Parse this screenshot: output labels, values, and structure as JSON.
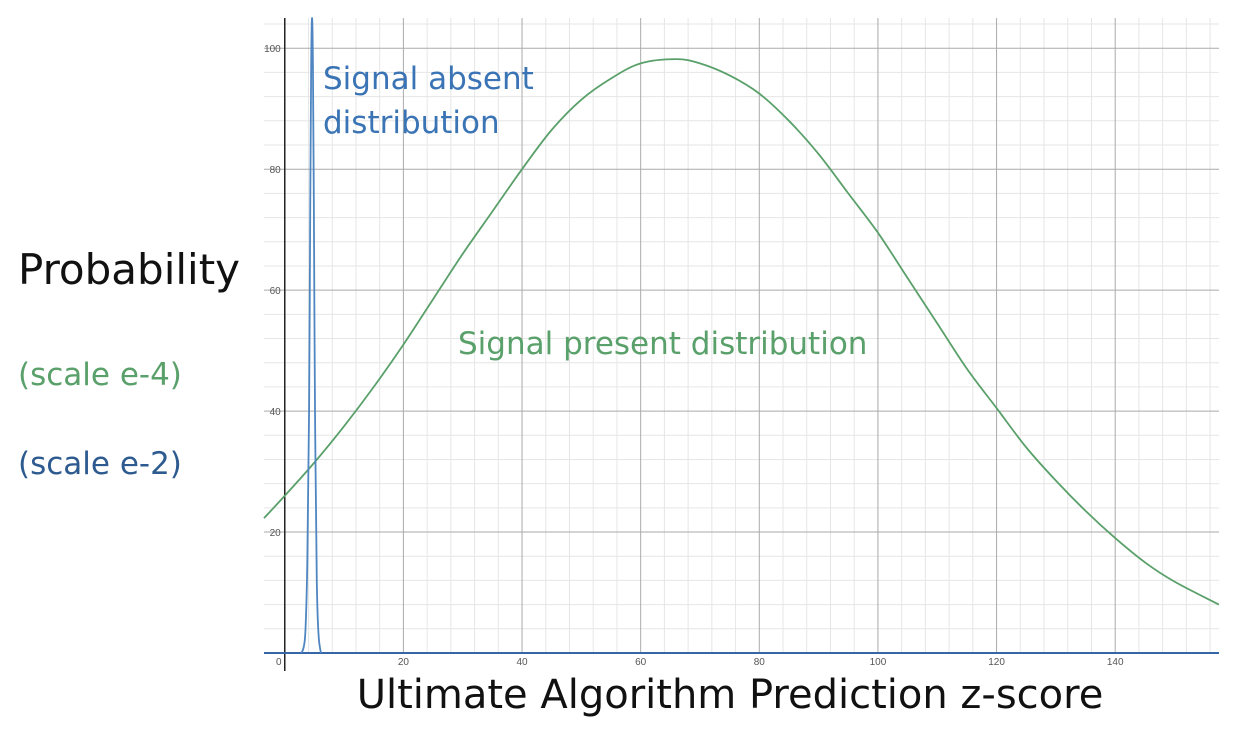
{
  "labels": {
    "ylabel": "Probability",
    "scale_green": "(scale e-4)",
    "scale_blue": "(scale e-2)",
    "xlabel": "Ultimate Algorithm Prediction z-score",
    "absent_line1": "Signal absent",
    "absent_line2": "distribution",
    "present": "Signal present distribution"
  },
  "colors": {
    "present": "#5aa06a",
    "absent": "#4f86c2",
    "scale_blue": "#2e5b8f",
    "absent_label": "#3a74b5",
    "axis_x": "#3567a8",
    "axis_y": "#222222",
    "grid_major": "#aaaaaa",
    "grid_minor": "#e6e6e6"
  },
  "chart_data": {
    "type": "line",
    "xlim": [
      -3.5,
      157.5
    ],
    "ylim": [
      0,
      105
    ],
    "x_ticks": [
      0,
      20,
      40,
      60,
      80,
      100,
      120,
      140
    ],
    "x_tick_labels": [
      "0",
      "20",
      "40",
      "60",
      "80",
      "100",
      "120",
      "140"
    ],
    "y_ticks": [
      20,
      40,
      60,
      80,
      100
    ],
    "y_tick_labels": [
      "20",
      "40",
      "60",
      "80",
      "100"
    ],
    "grid": true,
    "series": [
      {
        "name": "Signal present distribution",
        "x": [
          -3.5,
          0,
          5,
          10,
          15,
          20,
          25,
          30,
          35,
          40,
          45,
          50,
          55,
          60,
          66,
          70,
          75,
          80,
          85,
          90,
          95,
          100,
          105,
          110,
          115,
          120,
          125,
          130,
          135,
          140,
          145,
          150,
          157.5
        ],
        "y": [
          22.3,
          26,
          31.5,
          37.5,
          44,
          51,
          58.5,
          66,
          73,
          80,
          86.5,
          91.5,
          95,
          97.5,
          98.2,
          97.5,
          95.5,
          92.5,
          88,
          82.5,
          76,
          69.5,
          62,
          54.5,
          47,
          40.5,
          34,
          28.5,
          23.5,
          19,
          15,
          11.8,
          8
        ]
      },
      {
        "name": "Signal absent distribution",
        "x": [
          2.8,
          3.2,
          3.5,
          3.8,
          4.1,
          4.3,
          4.45,
          4.6,
          4.75,
          4.9,
          5.1,
          5.4,
          5.7,
          6.1
        ],
        "y": [
          0,
          1,
          4,
          15,
          40,
          75,
          97,
          105,
          97,
          75,
          40,
          12,
          3,
          0
        ]
      }
    ]
  }
}
